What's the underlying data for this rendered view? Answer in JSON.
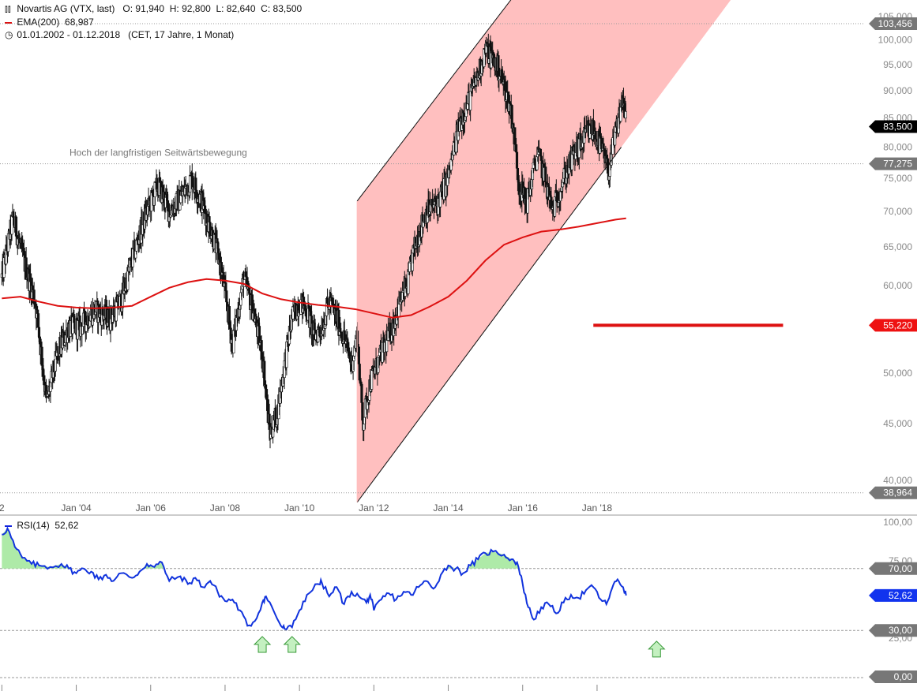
{
  "legend": {
    "instrument": "Novartis AG (VTX, last)",
    "ohlc": "O: 91,940  H: 92,800  L: 82,640  C: 83,500",
    "ema_label": "EMA(200)",
    "ema_value": "68,987",
    "period": "01.01.2002 - 01.12.2018",
    "period_info": "(CET, 17 Jahre, 1 Monat)",
    "rsi_label": "RSI(14)",
    "rsi_value": "52,62"
  },
  "annotation": "Hoch der langfristigen Seitwärtsbewegung",
  "colors": {
    "candle": "#111111",
    "ema": "#dd1111",
    "channel_fill": "#ffbfbf",
    "rsi": "#1133dd",
    "rsi_fill": "#aeeaa8",
    "arrow_fill": "#c4f0c0",
    "arrow_stroke": "#3a9a3a"
  },
  "chart_data": [
    {
      "type": "candlestick",
      "x_ticks": [
        {
          "date": "2002.0",
          "label": "2"
        },
        {
          "date": "2004.0",
          "label": "Jan '04"
        },
        {
          "date": "2006.0",
          "label": "Jan '06"
        },
        {
          "date": "2008.0",
          "label": "Jan '08"
        },
        {
          "date": "2010.0",
          "label": "Jan '10"
        },
        {
          "date": "2012.0",
          "label": "Jan '12"
        },
        {
          "date": "2014.0",
          "label": "Jan '14"
        },
        {
          "date": "2016.0",
          "label": "Jan '16"
        },
        {
          "date": "2018.0",
          "label": "Jan '18"
        }
      ],
      "xlim": [
        2001.95,
        2026.6
      ],
      "y_scale": "log",
      "ylim": [
        38.0,
        106.2
      ],
      "y_ticks": [
        {
          "value": 40,
          "label": "40,000"
        },
        {
          "value": 45,
          "label": "45,000"
        },
        {
          "value": 50,
          "label": "50,000"
        },
        {
          "value": 55,
          "label": "55,000"
        },
        {
          "value": 60,
          "label": "60,000"
        },
        {
          "value": 65,
          "label": "65,000"
        },
        {
          "value": 70,
          "label": "70,000"
        },
        {
          "value": 75,
          "label": "75,000"
        },
        {
          "value": 80,
          "label": "80,000"
        },
        {
          "value": 85,
          "label": "85,000"
        },
        {
          "value": 90,
          "label": "90,000"
        },
        {
          "value": 95,
          "label": "95,000"
        },
        {
          "value": 100,
          "label": "100,000"
        },
        {
          "value": 105,
          "label": "105,000"
        }
      ],
      "price_labels": [
        {
          "value": 103.456,
          "label": "103,456",
          "style": "gray"
        },
        {
          "value": 83.5,
          "label": "83,500",
          "style": "black"
        },
        {
          "value": 77.275,
          "label": "77,275",
          "style": "gray"
        },
        {
          "value": 55.22,
          "label": "55,220",
          "style": "red"
        },
        {
          "value": 38.964,
          "label": "38,964",
          "style": "gray"
        }
      ],
      "horizontal_lines": [
        {
          "value": 103.456,
          "style": "dotted"
        },
        {
          "value": 77.275,
          "style": "dotted"
        },
        {
          "value": 38.964,
          "style": "dotted"
        }
      ],
      "support_line": {
        "from": 2017.9,
        "to": 2023.0,
        "value": 55.22
      },
      "channel": {
        "lower": [
          [
            2011.55,
            38.2
          ],
          [
            2018.65,
            80.0
          ]
        ],
        "upper": [
          [
            2011.55,
            71.5
          ],
          [
            2015.8,
            110.0
          ]
        ],
        "shade_from": 2011.55
      },
      "annotation_level": 77.275,
      "ohlc_anchor_points": [
        [
          2002.0,
          61
        ],
        [
          2002.3,
          69
        ],
        [
          2002.6,
          63
        ],
        [
          2002.9,
          58
        ],
        [
          2003.2,
          47
        ],
        [
          2003.5,
          52
        ],
        [
          2003.8,
          55
        ],
        [
          2004.1,
          55
        ],
        [
          2004.5,
          57
        ],
        [
          2004.9,
          56
        ],
        [
          2005.2,
          58
        ],
        [
          2005.6,
          65
        ],
        [
          2005.9,
          70
        ],
        [
          2006.2,
          74
        ],
        [
          2006.5,
          70
        ],
        [
          2006.8,
          72
        ],
        [
          2007.1,
          75
        ],
        [
          2007.4,
          71
        ],
        [
          2007.7,
          66
        ],
        [
          2007.9,
          62
        ],
        [
          2008.2,
          53
        ],
        [
          2008.5,
          61
        ],
        [
          2008.75,
          57
        ],
        [
          2009.0,
          52
        ],
        [
          2009.2,
          44
        ],
        [
          2009.4,
          46
        ],
        [
          2009.6,
          51
        ],
        [
          2009.8,
          56
        ],
        [
          2010.0,
          58
        ],
        [
          2010.2,
          57
        ],
        [
          2010.4,
          54
        ],
        [
          2010.6,
          55
        ],
        [
          2010.8,
          58
        ],
        [
          2011.1,
          55
        ],
        [
          2011.4,
          51
        ],
        [
          2011.55,
          54
        ],
        [
          2011.7,
          45
        ],
        [
          2011.9,
          49
        ],
        [
          2012.2,
          52
        ],
        [
          2012.5,
          55
        ],
        [
          2012.7,
          58
        ],
        [
          2012.9,
          60
        ],
        [
          2013.1,
          65
        ],
        [
          2013.4,
          70
        ],
        [
          2013.7,
          71
        ],
        [
          2014.0,
          75
        ],
        [
          2014.3,
          84
        ],
        [
          2014.6,
          89
        ],
        [
          2014.8,
          93
        ],
        [
          2015.0,
          98
        ],
        [
          2015.3,
          95
        ],
        [
          2015.5,
          91
        ],
        [
          2015.7,
          86
        ],
        [
          2015.9,
          74
        ],
        [
          2016.1,
          71
        ],
        [
          2016.4,
          79
        ],
        [
          2016.6,
          75
        ],
        [
          2016.8,
          70
        ],
        [
          2017.1,
          75
        ],
        [
          2017.4,
          79
        ],
        [
          2017.7,
          82
        ],
        [
          2017.9,
          83
        ],
        [
          2018.1,
          80
        ],
        [
          2018.3,
          76
        ],
        [
          2018.5,
          82
        ],
        [
          2018.7,
          89
        ],
        [
          2018.78,
          83.5
        ]
      ],
      "ema_points": [
        [
          2002.0,
          58.4
        ],
        [
          2002.5,
          58.6
        ],
        [
          2003.0,
          58.0
        ],
        [
          2003.5,
          57.5
        ],
        [
          2004.0,
          57.3
        ],
        [
          2004.5,
          57.2
        ],
        [
          2005.0,
          57.3
        ],
        [
          2005.5,
          57.5
        ],
        [
          2006.0,
          58.6
        ],
        [
          2006.5,
          59.7
        ],
        [
          2007.0,
          60.4
        ],
        [
          2007.5,
          60.8
        ],
        [
          2008.0,
          60.6
        ],
        [
          2008.5,
          60.2
        ],
        [
          2009.0,
          59.0
        ],
        [
          2009.5,
          58.3
        ],
        [
          2010.0,
          57.9
        ],
        [
          2010.5,
          57.6
        ],
        [
          2011.0,
          57.4
        ],
        [
          2011.5,
          57.1
        ],
        [
          2012.0,
          56.6
        ],
        [
          2012.5,
          56.1
        ],
        [
          2013.0,
          56.4
        ],
        [
          2013.5,
          57.4
        ],
        [
          2014.0,
          58.6
        ],
        [
          2014.5,
          60.6
        ],
        [
          2015.0,
          63.2
        ],
        [
          2015.5,
          65.3
        ],
        [
          2016.0,
          66.3
        ],
        [
          2016.5,
          67.1
        ],
        [
          2017.0,
          67.4
        ],
        [
          2017.5,
          67.8
        ],
        [
          2018.0,
          68.3
        ],
        [
          2018.5,
          68.8
        ],
        [
          2018.78,
          68.987
        ]
      ]
    },
    {
      "type": "line",
      "series": [
        {
          "name": "RSI(14)",
          "last": 52.62
        }
      ],
      "ylim": [
        0,
        100
      ],
      "y_ticks": [
        {
          "value": 100,
          "label": "100,00"
        },
        {
          "value": 75,
          "label": "75,00"
        },
        {
          "value": 25,
          "label": "25,00"
        }
      ],
      "levels": [
        {
          "value": 70,
          "label": "70,00",
          "style": "gray"
        },
        {
          "value": 30,
          "label": "30,00",
          "style": "gray"
        },
        {
          "value": 0,
          "label": "0,00",
          "style": "gray"
        }
      ],
      "last_label": {
        "value": 52.62,
        "label": "52,62",
        "style": "blue"
      },
      "overbought": 70,
      "arrows": [
        {
          "x": 2009.0,
          "value": 24
        },
        {
          "x": 2009.8,
          "value": 24
        },
        {
          "x": 2019.6,
          "value": 21
        }
      ],
      "rsi_points": [
        [
          2002.0,
          92
        ],
        [
          2002.15,
          96
        ],
        [
          2002.35,
          84
        ],
        [
          2002.55,
          77
        ],
        [
          2002.8,
          73
        ],
        [
          2003.0,
          72
        ],
        [
          2003.3,
          71
        ],
        [
          2003.6,
          73
        ],
        [
          2003.8,
          70
        ],
        [
          2004.0,
          67
        ],
        [
          2004.2,
          70
        ],
        [
          2004.4,
          68
        ],
        [
          2004.6,
          63
        ],
        [
          2004.8,
          66
        ],
        [
          2005.0,
          62
        ],
        [
          2005.2,
          67
        ],
        [
          2005.5,
          64
        ],
        [
          2005.7,
          68
        ],
        [
          2005.9,
          73
        ],
        [
          2006.1,
          71
        ],
        [
          2006.3,
          74
        ],
        [
          2006.5,
          62
        ],
        [
          2006.8,
          65
        ],
        [
          2007.0,
          60
        ],
        [
          2007.2,
          64
        ],
        [
          2007.4,
          58
        ],
        [
          2007.6,
          62
        ],
        [
          2007.8,
          55
        ],
        [
          2008.0,
          49
        ],
        [
          2008.2,
          50
        ],
        [
          2008.4,
          43
        ],
        [
          2008.6,
          33
        ],
        [
          2008.8,
          36
        ],
        [
          2009.0,
          48
        ],
        [
          2009.1,
          52
        ],
        [
          2009.3,
          43
        ],
        [
          2009.5,
          33
        ],
        [
          2009.6,
          31
        ],
        [
          2009.8,
          32
        ],
        [
          2010.0,
          43
        ],
        [
          2010.2,
          53
        ],
        [
          2010.5,
          60
        ],
        [
          2010.6,
          61
        ],
        [
          2010.8,
          52
        ],
        [
          2011.0,
          58
        ],
        [
          2011.2,
          47
        ],
        [
          2011.4,
          55
        ],
        [
          2011.6,
          52
        ],
        [
          2011.8,
          48
        ],
        [
          2011.9,
          53
        ],
        [
          2012.0,
          43
        ],
        [
          2012.2,
          50
        ],
        [
          2012.4,
          54
        ],
        [
          2012.6,
          50
        ],
        [
          2012.8,
          55
        ],
        [
          2013.0,
          53
        ],
        [
          2013.2,
          58
        ],
        [
          2013.4,
          62
        ],
        [
          2013.6,
          57
        ],
        [
          2013.8,
          66
        ],
        [
          2014.0,
          72
        ],
        [
          2014.2,
          70
        ],
        [
          2014.4,
          67
        ],
        [
          2014.6,
          72
        ],
        [
          2014.8,
          76
        ],
        [
          2015.0,
          80
        ],
        [
          2015.2,
          81
        ],
        [
          2015.5,
          79
        ],
        [
          2015.7,
          76
        ],
        [
          2015.85,
          74
        ],
        [
          2016.0,
          60
        ],
        [
          2016.15,
          45
        ],
        [
          2016.3,
          37
        ],
        [
          2016.5,
          45
        ],
        [
          2016.7,
          47
        ],
        [
          2016.9,
          41
        ],
        [
          2017.1,
          48
        ],
        [
          2017.3,
          53
        ],
        [
          2017.5,
          51
        ],
        [
          2017.7,
          56
        ],
        [
          2017.9,
          58
        ],
        [
          2018.1,
          50
        ],
        [
          2018.25,
          47
        ],
        [
          2018.4,
          57
        ],
        [
          2018.55,
          63
        ],
        [
          2018.7,
          58
        ],
        [
          2018.78,
          52.62
        ]
      ]
    }
  ]
}
